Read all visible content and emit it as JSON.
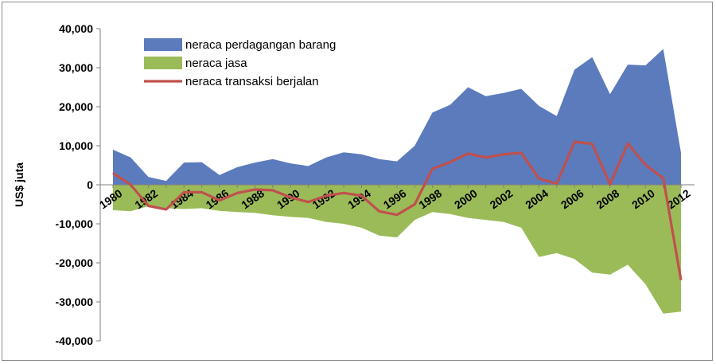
{
  "chart_data": {
    "type": "area",
    "ylabel": "US$ juta",
    "xlabel": "",
    "ylim": [
      -40000,
      40000
    ],
    "yticks": [
      40000,
      30000,
      20000,
      10000,
      0,
      -10000,
      -20000,
      -30000,
      -40000
    ],
    "ytick_labels": [
      "40,000",
      "30,000",
      "20,000",
      "10,000",
      "0",
      "-10,000",
      "-20,000",
      "-30,000",
      "-40,000"
    ],
    "x": [
      1980,
      1981,
      1982,
      1983,
      1984,
      1985,
      1986,
      1987,
      1988,
      1989,
      1990,
      1991,
      1992,
      1993,
      1994,
      1995,
      1996,
      1997,
      1998,
      1999,
      2000,
      2001,
      2002,
      2003,
      2004,
      2005,
      2006,
      2007,
      2008,
      2009,
      2010,
      2011,
      2012
    ],
    "xtick_labels": [
      "1980",
      "1982",
      "1984",
      "1986",
      "1988",
      "1990",
      "1992",
      "1994",
      "1996",
      "1998",
      "2000",
      "2002",
      "2004",
      "2006",
      "2008",
      "2010",
      "2012"
    ],
    "grid": false,
    "legend_position": "top-left",
    "series": [
      {
        "name": "neraca perdagangan barang",
        "kind": "area",
        "color": "#5b7bbd",
        "values": [
          9000,
          7000,
          2000,
          1000,
          5700,
          5800,
          2500,
          4500,
          5700,
          6600,
          5500,
          4800,
          7000,
          8300,
          7800,
          6600,
          6000,
          10000,
          18500,
          20500,
          25000,
          22700,
          23500,
          24600,
          20200,
          17600,
          29500,
          32700,
          23200,
          30800,
          30600,
          34800,
          8200
        ]
      },
      {
        "name": "neraca jasa",
        "kind": "area",
        "color": "#9bbb59",
        "values": [
          -6500,
          -6800,
          -5500,
          -6000,
          -6200,
          -6000,
          -6700,
          -7000,
          -7200,
          -7800,
          -8200,
          -8500,
          -9500,
          -10000,
          -11000,
          -13000,
          -13500,
          -9000,
          -7000,
          -7500,
          -8500,
          -9000,
          -9500,
          -11000,
          -18500,
          -17500,
          -19000,
          -22500,
          -23000,
          -20500,
          -25500,
          -33000,
          -32500
        ]
      },
      {
        "name": "neraca transaksi berjalan",
        "kind": "line",
        "color": "#c0504d",
        "values": [
          3000,
          0,
          -5400,
          -6300,
          -1900,
          -1900,
          -4000,
          -2100,
          -1200,
          -1400,
          -3200,
          -4400,
          -2800,
          -2100,
          -2800,
          -6800,
          -7700,
          -5000,
          4100,
          5800,
          8000,
          7000,
          7800,
          8200,
          1600,
          300,
          11000,
          10500,
          100,
          10600,
          5100,
          1700,
          -24400
        ]
      }
    ]
  }
}
